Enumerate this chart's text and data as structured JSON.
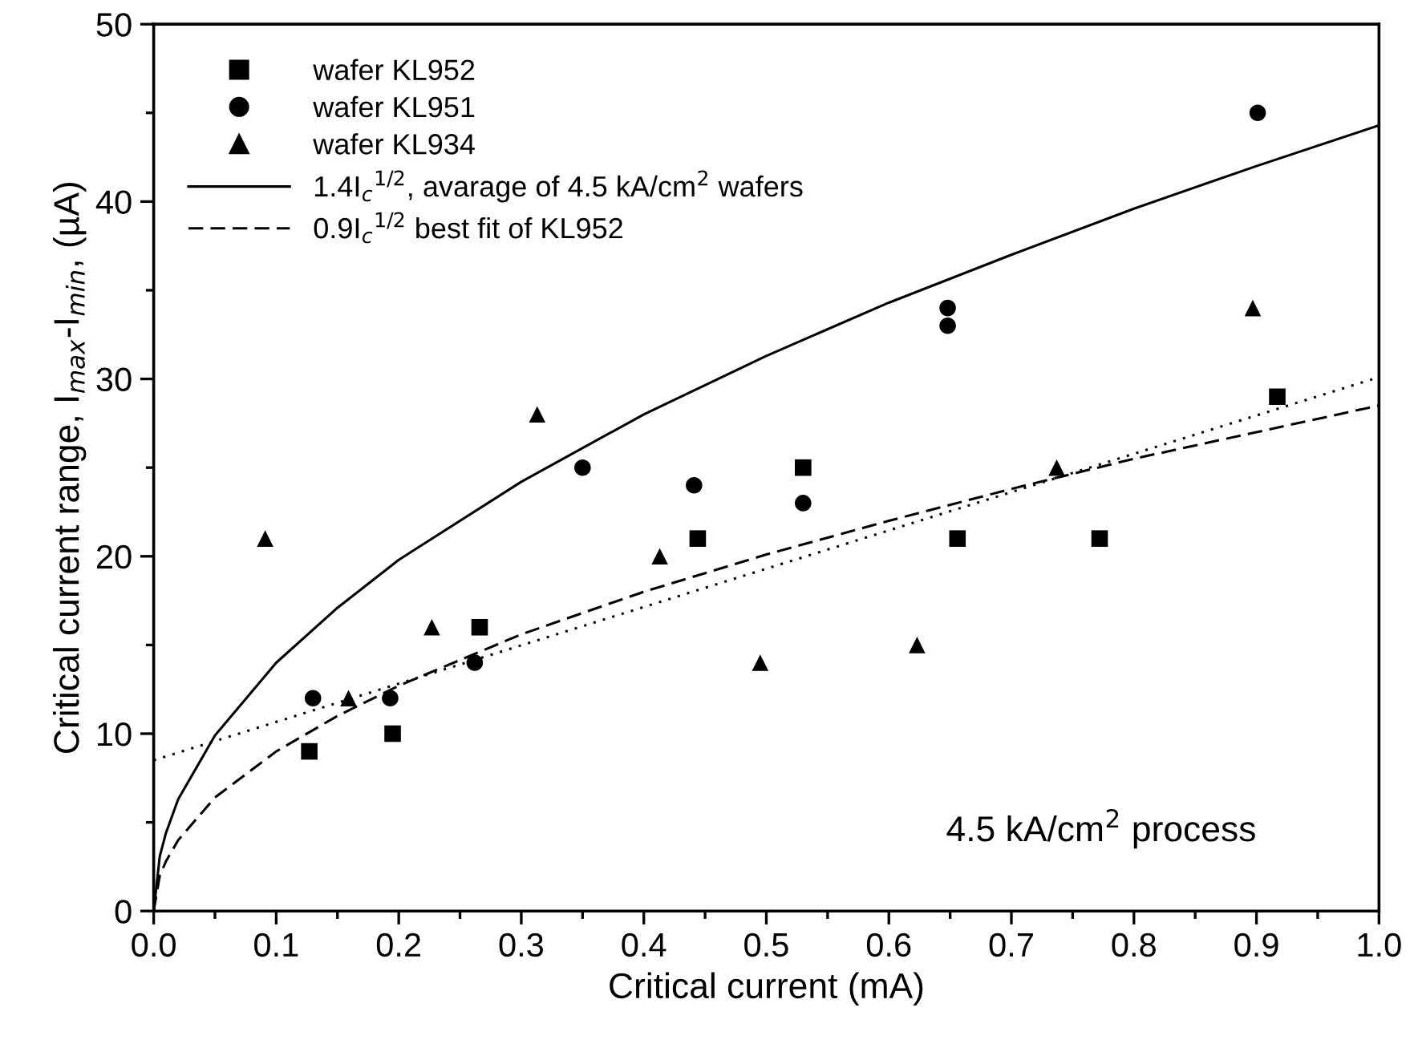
{
  "chart_data": {
    "type": "scatter",
    "xlabel": "Critical current (mA)",
    "ylabel": "Critical current range, I$_{max}$-I$_{min}$, (µA)",
    "xlim": [
      0,
      1.0
    ],
    "ylim": [
      0,
      50
    ],
    "xticks": [
      {
        "value": 0,
        "label": "0.0"
      },
      {
        "value": 0.1,
        "label": "0.1"
      },
      {
        "value": 0.2,
        "label": "0.2"
      },
      {
        "value": 0.3,
        "label": "0.3"
      },
      {
        "value": 0.4,
        "label": "0.4"
      },
      {
        "value": 0.5,
        "label": "0.5"
      },
      {
        "value": 0.6,
        "label": "0.6"
      },
      {
        "value": 0.7,
        "label": "0.7"
      },
      {
        "value": 0.8,
        "label": "0.8"
      },
      {
        "value": 0.9,
        "label": "0.9"
      },
      {
        "value": 1.0,
        "label": "1.0"
      }
    ],
    "yticks": [
      0,
      10,
      20,
      30,
      40,
      50
    ],
    "grid": false,
    "legend": "top left",
    "annotations": [
      {
        "text": "4.5 kA/cm$^{2}$ process"
      }
    ],
    "series": [
      {
        "name": "wafer KL952",
        "marker": "square",
        "color": "#000000",
        "x": [
          0.127,
          0.195,
          0.266,
          0.444,
          0.53,
          0.656,
          0.772,
          0.917
        ],
        "values": [
          9,
          10,
          16,
          21,
          25,
          21,
          21,
          29
        ]
      },
      {
        "name": "wafer KL951",
        "marker": "circle",
        "color": "#000000",
        "x": [
          0.13,
          0.193,
          0.262,
          0.35,
          0.441,
          0.53,
          0.648,
          0.648,
          0.901
        ],
        "values": [
          12,
          12,
          14,
          25,
          24,
          23,
          34,
          33,
          45
        ]
      },
      {
        "name": "wafer KL934",
        "marker": "triangle",
        "color": "#000000",
        "x": [
          0.091,
          0.159,
          0.227,
          0.313,
          0.413,
          0.495,
          0.623,
          0.737,
          0.897
        ],
        "values": [
          21,
          12,
          16,
          28,
          20,
          14,
          15,
          25,
          34
        ]
      },
      {
        "name": "1.4I$_{c}$$^{1/2}$, avarage of 4.5 kA/cm$^{2}$ wafers",
        "type": "line",
        "line_style": "solid",
        "color": "#000000",
        "x": [
          0,
          0.005,
          0.01,
          0.02,
          0.05,
          0.1,
          0.15,
          0.2,
          0.3,
          0.4,
          0.5,
          0.6,
          0.7,
          0.8,
          0.9,
          1.0
        ],
        "values": [
          0,
          3.1,
          4.4,
          6.3,
          9.9,
          14.0,
          17.1,
          19.8,
          24.2,
          28.0,
          31.3,
          34.3,
          37.0,
          39.6,
          42.0,
          44.3
        ]
      },
      {
        "name": "0.9I$_{c}$$^{1/2}$ best fit of KL952",
        "type": "line",
        "line_style": "dashed",
        "color": "#000000",
        "x": [
          0,
          0.005,
          0.01,
          0.02,
          0.05,
          0.1,
          0.15,
          0.2,
          0.3,
          0.4,
          0.5,
          0.6,
          0.7,
          0.8,
          0.9,
          1.0
        ],
        "values": [
          0,
          2.0,
          2.8,
          4.0,
          6.4,
          9.0,
          11.0,
          12.7,
          15.6,
          18.0,
          20.1,
          22.0,
          23.8,
          25.5,
          27.0,
          28.5
        ]
      },
      {
        "type": "line",
        "line_style": "dotted",
        "color": "#000000",
        "x": [
          0,
          1.0
        ],
        "values": [
          8.5,
          30.1
        ]
      }
    ]
  }
}
